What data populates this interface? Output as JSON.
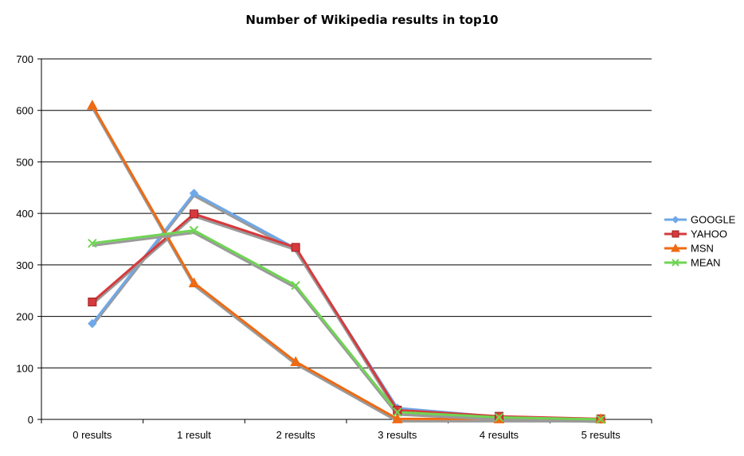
{
  "chart_data": {
    "type": "line",
    "title": "Number of Wikipedia results in top10",
    "xlabel": "",
    "ylabel": "",
    "categories": [
      "0 results",
      "1 result",
      "2 results",
      "3 results",
      "4 results",
      "5 results"
    ],
    "ylim": [
      0,
      700
    ],
    "yticks": [
      0,
      100,
      200,
      300,
      400,
      500,
      600,
      700
    ],
    "grid": true,
    "legend_position": "right",
    "series": [
      {
        "name": "GOOGLE",
        "color": "#6fa8e8",
        "marker": "diamond",
        "values": [
          186,
          439,
          332,
          22,
          5,
          0
        ]
      },
      {
        "name": "YAHOO",
        "color": "#d63a3c",
        "marker": "square",
        "values": [
          228,
          399,
          334,
          18,
          6,
          1
        ]
      },
      {
        "name": "MSN",
        "color": "#ee6a13",
        "marker": "triangle",
        "values": [
          610,
          265,
          112,
          1,
          1,
          1
        ]
      },
      {
        "name": "MEAN",
        "color": "#6fd454",
        "marker": "x",
        "values": [
          342,
          367,
          260,
          14,
          4,
          0
        ]
      }
    ]
  }
}
